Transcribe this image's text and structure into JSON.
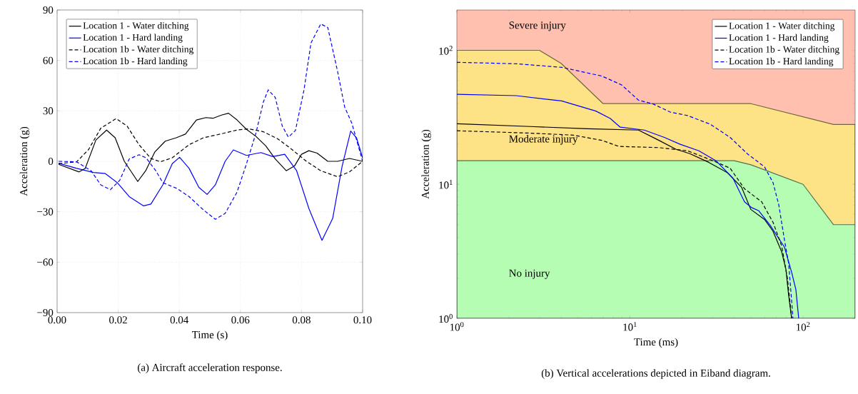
{
  "chart_data": [
    {
      "type": "line",
      "title": "(a) Aircraft acceleration response.",
      "xlabel": "Time (s)",
      "ylabel": "Acceleration (g)",
      "xlim": [
        0,
        0.1
      ],
      "ylim": [
        -90,
        90
      ],
      "xticks": [
        {
          "value": 0,
          "label": "0.00"
        },
        {
          "value": 0.02,
          "label": "0.02"
        },
        {
          "value": 0.04,
          "label": "0.04"
        },
        {
          "value": 0.06,
          "label": "0.06"
        },
        {
          "value": 0.08,
          "label": "0.08"
        },
        {
          "value": 0.1,
          "label": "0.10"
        }
      ],
      "yticks": [
        {
          "value": -90,
          "label": "−90"
        },
        {
          "value": -60,
          "label": "−60"
        },
        {
          "value": -30,
          "label": "−30"
        },
        0,
        30,
        60,
        90
      ],
      "grid": true,
      "legend": "top left",
      "series": [
        {
          "name": "Location 1 - Water ditching",
          "color": "#000000",
          "line_style": "solid",
          "x": [
            0.0005,
            0.0072,
            0.0092,
            0.0127,
            0.0162,
            0.019,
            0.022,
            0.0264,
            0.029,
            0.032,
            0.0354,
            0.039,
            0.042,
            0.0456,
            0.0487,
            0.051,
            0.0538,
            0.0561,
            0.0589,
            0.062,
            0.0651,
            0.0683,
            0.0714,
            0.075,
            0.0777,
            0.08,
            0.0824,
            0.0851,
            0.0886,
            0.0918,
            0.0957,
            0.1
          ],
          "values": [
            -1.8,
            -6.3,
            -4.2,
            12.7,
            18.6,
            14,
            0,
            -12,
            -5.6,
            5.6,
            12,
            14,
            16.2,
            24.6,
            26,
            25.6,
            27.5,
            28.6,
            24.6,
            19,
            14.8,
            9.2,
            1.4,
            -5.6,
            -2.8,
            4.2,
            6.3,
            4.9,
            0,
            0,
            1.7,
            0
          ]
        },
        {
          "name": "Location 1 - Hard landing",
          "color": "#0000ff",
          "line_style": "solid",
          "x": [
            0.0005,
            0.0064,
            0.0119,
            0.0158,
            0.0197,
            0.0236,
            0.0283,
            0.0307,
            0.0346,
            0.0377,
            0.0401,
            0.0432,
            0.0464,
            0.0491,
            0.0518,
            0.055,
            0.0577,
            0.062,
            0.0667,
            0.0706,
            0.0745,
            0.0784,
            0.0824,
            0.0867,
            0.0902,
            0.0933,
            0.0961,
            0.098,
            0.1
          ],
          "values": [
            -1.1,
            -4.2,
            -6.6,
            -7.3,
            -12.7,
            -21,
            -26.5,
            -25.4,
            -14,
            -1.4,
            2.4,
            -4.2,
            -15.5,
            -19.7,
            -14,
            0,
            6.8,
            3.5,
            5.2,
            2.8,
            4.2,
            -5.6,
            -28,
            -47,
            -34,
            -2.8,
            18,
            14,
            2
          ]
        },
        {
          "name": "Location 1b - Water ditching",
          "color": "#000000",
          "line_style": "dashed",
          "x": [
            0.0005,
            0.0064,
            0.0103,
            0.0143,
            0.0193,
            0.0229,
            0.0268,
            0.0307,
            0.0338,
            0.0377,
            0.0432,
            0.0479,
            0.0534,
            0.0589,
            0.0628,
            0.0675,
            0.0722,
            0.0769,
            0.0816,
            0.0863,
            0.0918,
            0.0957,
            0.1
          ],
          "values": [
            -1.4,
            -0.3,
            7,
            19.7,
            25.4,
            21,
            9.9,
            1.7,
            -0.3,
            2.1,
            9.9,
            14,
            16.2,
            18.6,
            19.3,
            17.6,
            13.4,
            7,
            0,
            -5.6,
            -9.2,
            -6.3,
            0
          ]
        },
        {
          "name": "Location 1b - Hard landing",
          "color": "#0000ff",
          "line_style": "dashed",
          "x": [
            0.0005,
            0.0064,
            0.0111,
            0.0143,
            0.0174,
            0.0205,
            0.0236,
            0.0268,
            0.0291,
            0.0323,
            0.0346,
            0.0393,
            0.0432,
            0.0479,
            0.0518,
            0.055,
            0.0589,
            0.062,
            0.0651,
            0.0675,
            0.0691,
            0.0714,
            0.0737,
            0.0757,
            0.078,
            0.0808,
            0.0831,
            0.0863,
            0.0886,
            0.0918,
            0.0941,
            0.0965,
            0.1
          ],
          "values": [
            0,
            -0.3,
            -5.6,
            -14,
            -16.9,
            -11.3,
            1.4,
            3.9,
            2.1,
            -5.6,
            -12.7,
            -16.2,
            -21,
            -28.9,
            -34.5,
            -31,
            -18.3,
            -1.4,
            16.9,
            35.2,
            42.5,
            38,
            21,
            14.4,
            18.3,
            42.3,
            70.4,
            81.7,
            79.6,
            53.5,
            32.4,
            22.5,
            0
          ]
        }
      ]
    },
    {
      "type": "line",
      "title": "(b) Vertical accelerations depicted in Eiband diagram.",
      "xlabel": "Time (ms)",
      "ylabel": "Acceleration (g)",
      "log": "xy",
      "xlim": [
        1,
        200
      ],
      "ylim": [
        1,
        200
      ],
      "xticks": [
        {
          "value": 1,
          "label": "10$^{0}$"
        },
        {
          "value": 10,
          "label": "10$^{1}$"
        },
        {
          "value": 100,
          "label": "10$^{2}$"
        }
      ],
      "yticks": [
        {
          "value": 1,
          "label": "10$^{0}$"
        },
        {
          "value": 10,
          "label": "10$^{1}$"
        },
        {
          "value": 100,
          "label": "10$^{2}$"
        }
      ],
      "legend": "top right",
      "bands": [
        {
          "axis": "y",
          "from": 28,
          "to": 200,
          "color": "#ffc0b0"
        }
      ],
      "annotations": [
        "Severe injury",
        "Moderate injury",
        "No injury"
      ],
      "series": [
        {
          "type": "area",
          "color": "#fde385",
          "x": [
            1,
            3,
            4,
            7,
            50,
            150,
            200
          ],
          "values": [
            100,
            100,
            80,
            40,
            40,
            28,
            28
          ]
        },
        {
          "type": "area",
          "color": "#b5fdb3",
          "x": [
            1,
            40,
            50,
            100,
            150,
            200
          ],
          "values": [
            15,
            15,
            14,
            10,
            5,
            5
          ]
        },
        {
          "name": "Location 1 - Water ditching",
          "color": "#000000",
          "line_style": "solid",
          "x": [
            1,
            2.66,
            5.68,
            11.2,
            14.7,
            18.4,
            22.3,
            28.5,
            36.6,
            44.2,
            49.9,
            59.9,
            67,
            75.2,
            79.6,
            82.6,
            85.9
          ],
          "values": [
            28.3,
            27,
            26,
            25.4,
            21.3,
            18.3,
            16.9,
            14.6,
            12.2,
            9.5,
            6.5,
            5.47,
            4.48,
            3.15,
            2.33,
            1.48,
            1
          ]
        },
        {
          "name": "Location 1 - Hard landing",
          "color": "#0000ff",
          "line_style": "solid",
          "x": [
            1,
            2.2,
            4.03,
            6.36,
            7.7,
            8.79,
            12.1,
            15.8,
            19.5,
            25,
            31.4,
            39.4,
            45.9,
            50.5,
            55.5,
            64.6,
            78.1,
            85.9,
            90.9,
            94.4
          ],
          "values": [
            47,
            45.9,
            41.9,
            35.2,
            31,
            26.7,
            25.4,
            22.4,
            19.9,
            17.8,
            15,
            11.1,
            7.4,
            6.7,
            6.35,
            4.95,
            3.4,
            2.21,
            1.64,
            1
          ]
        },
        {
          "name": "Location 1b - Water ditching",
          "color": "#000000",
          "line_style": "dashed",
          "x": [
            1,
            2.66,
            4.7,
            6.87,
            8.63,
            14.7,
            21.5,
            30.2,
            37.9,
            45.9,
            57.7,
            67.1,
            75.2,
            81.2,
            85.9
          ],
          "values": [
            25.1,
            24.1,
            23.3,
            21.3,
            19.2,
            18.8,
            17.8,
            15,
            13.2,
            9.27,
            7.4,
            5.2,
            3.48,
            2,
            1
          ]
        },
        {
          "name": "Location 1b - Hard landing",
          "color": "#0000ff",
          "line_style": "dashed",
          "x": [
            1,
            2.2,
            4.03,
            6.87,
            8.95,
            11.2,
            13.6,
            17.1,
            21.5,
            29.1,
            37.9,
            47.7,
            59.9,
            67.1,
            72.4,
            78.1,
            82.6,
            87.5
          ],
          "values": [
            81.4,
            79.4,
            74.7,
            64.3,
            55.2,
            42.5,
            39.8,
            34.6,
            32.6,
            28.1,
            22.4,
            16.9,
            13.5,
            10.3,
            7.03,
            3.85,
            2.57,
            1
          ]
        }
      ]
    }
  ]
}
